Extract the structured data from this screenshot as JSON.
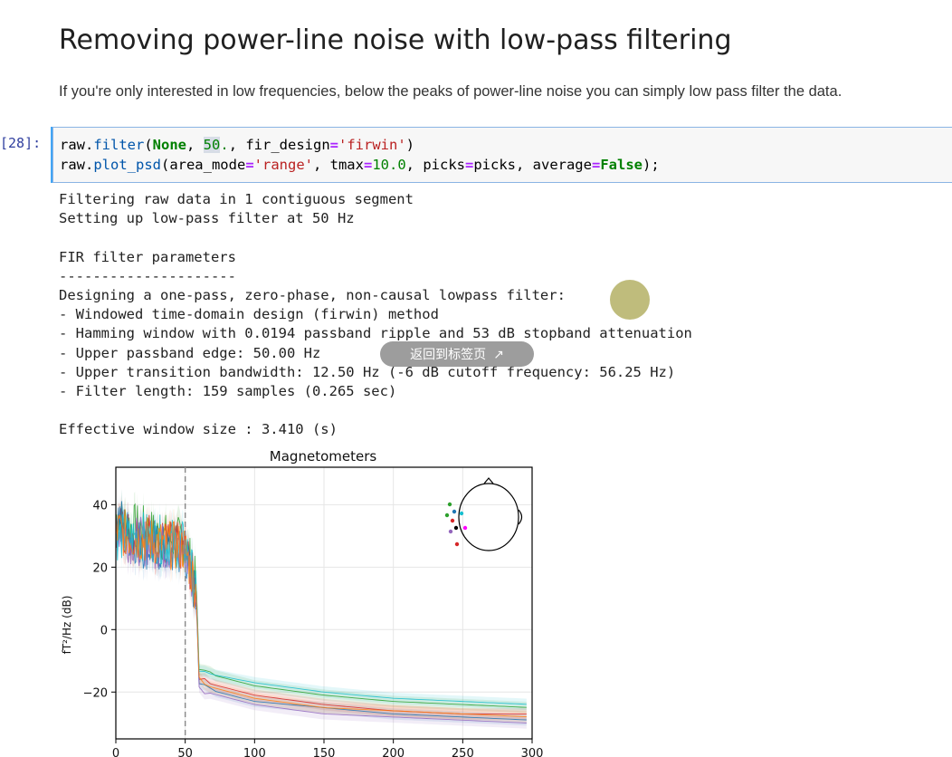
{
  "markdown": {
    "heading": "Removing power-line noise with low-pass filtering",
    "paragraph": "If you're only interested in low frequencies, below the peaks of power-line noise you can simply low pass filter the data."
  },
  "cell": {
    "prompt": "[28]:"
  },
  "output": {
    "lines": [
      "Filtering raw data in 1 contiguous segment",
      "Setting up low-pass filter at 50 Hz",
      "",
      "FIR filter parameters",
      "---------------------",
      "Designing a one-pass, zero-phase, non-causal lowpass filter:",
      "- Windowed time-domain design (firwin) method",
      "- Hamming window with 0.0194 passband ripple and 53 dB stopband attenuation",
      "- Upper passband edge: 50.00 Hz",
      "- Upper transition bandwidth: 12.50 Hz (-6 dB cutoff frequency: 56.25 Hz)",
      "- Filter length: 159 samples (0.265 sec)",
      "",
      "Effective window size : 3.410 (s)"
    ]
  },
  "overlay": {
    "back_to_tab_label": "返回到标签页",
    "external_icon": "↗"
  },
  "chart_data": {
    "type": "line",
    "title": "Magnetometers",
    "xlabel": "",
    "ylabel": "fT²/Hz (dB)",
    "xlim": [
      0,
      300
    ],
    "ylim": [
      -35,
      52
    ],
    "xticks": [
      0,
      50,
      100,
      150,
      200,
      250,
      300
    ],
    "yticks": [
      40,
      20,
      0,
      -20
    ],
    "cutoff_line_x": 50,
    "grid": true,
    "series": [
      {
        "color": "#2ca02c",
        "values_at": [
          [
            0,
            36
          ],
          [
            10,
            33
          ],
          [
            20,
            32
          ],
          [
            30,
            30
          ],
          [
            40,
            29
          ],
          [
            50,
            28
          ],
          [
            58,
            14
          ],
          [
            60,
            -12
          ],
          [
            65,
            -14
          ],
          [
            100,
            -18
          ],
          [
            150,
            -21
          ],
          [
            200,
            -23
          ],
          [
            250,
            -24
          ],
          [
            300,
            -25
          ]
        ]
      },
      {
        "color": "#d62728",
        "values_at": [
          [
            0,
            34
          ],
          [
            10,
            31
          ],
          [
            20,
            31
          ],
          [
            30,
            28
          ],
          [
            40,
            27
          ],
          [
            50,
            26
          ],
          [
            58,
            12
          ],
          [
            60,
            -15
          ],
          [
            65,
            -17
          ],
          [
            100,
            -21
          ],
          [
            150,
            -24
          ],
          [
            200,
            -26
          ],
          [
            250,
            -27
          ],
          [
            300,
            -27
          ]
        ]
      },
      {
        "color": "#1f77b4",
        "values_at": [
          [
            0,
            38
          ],
          [
            10,
            30
          ],
          [
            20,
            27
          ],
          [
            30,
            26
          ],
          [
            40,
            25
          ],
          [
            50,
            24
          ],
          [
            58,
            10
          ],
          [
            60,
            -17
          ],
          [
            65,
            -19
          ],
          [
            100,
            -23
          ],
          [
            150,
            -25
          ],
          [
            200,
            -27
          ],
          [
            250,
            -28
          ],
          [
            300,
            -29
          ]
        ]
      },
      {
        "color": "#9467bd",
        "values_at": [
          [
            0,
            33
          ],
          [
            10,
            29
          ],
          [
            20,
            28
          ],
          [
            30,
            27
          ],
          [
            40,
            26
          ],
          [
            50,
            25
          ],
          [
            58,
            11
          ],
          [
            60,
            -18
          ],
          [
            65,
            -20
          ],
          [
            100,
            -24
          ],
          [
            150,
            -27
          ],
          [
            200,
            -28
          ],
          [
            250,
            -29
          ],
          [
            300,
            -30
          ]
        ]
      },
      {
        "color": "#17becf",
        "values_at": [
          [
            0,
            30
          ],
          [
            10,
            29
          ],
          [
            20,
            30
          ],
          [
            30,
            29
          ],
          [
            40,
            28
          ],
          [
            50,
            27
          ],
          [
            58,
            13
          ],
          [
            60,
            -13
          ],
          [
            65,
            -14
          ],
          [
            100,
            -17
          ],
          [
            150,
            -20
          ],
          [
            200,
            -22
          ],
          [
            250,
            -23
          ],
          [
            300,
            -24
          ]
        ]
      },
      {
        "color": "#ff7f0e",
        "values_at": [
          [
            0,
            32
          ],
          [
            10,
            30
          ],
          [
            20,
            29
          ],
          [
            30,
            28
          ],
          [
            40,
            27
          ],
          [
            50,
            26
          ],
          [
            58,
            12
          ],
          [
            60,
            -16
          ],
          [
            65,
            -18
          ],
          [
            100,
            -22
          ],
          [
            150,
            -25
          ],
          [
            200,
            -26
          ],
          [
            250,
            -27
          ],
          [
            300,
            -28
          ]
        ]
      }
    ],
    "sensor_dot_colors": [
      "#2ca02c",
      "#2ca02c",
      "#1f77b4",
      "#d62728",
      "#9467bd",
      "#000000",
      "#17becf",
      "#ff00ff",
      "#d62728"
    ]
  }
}
